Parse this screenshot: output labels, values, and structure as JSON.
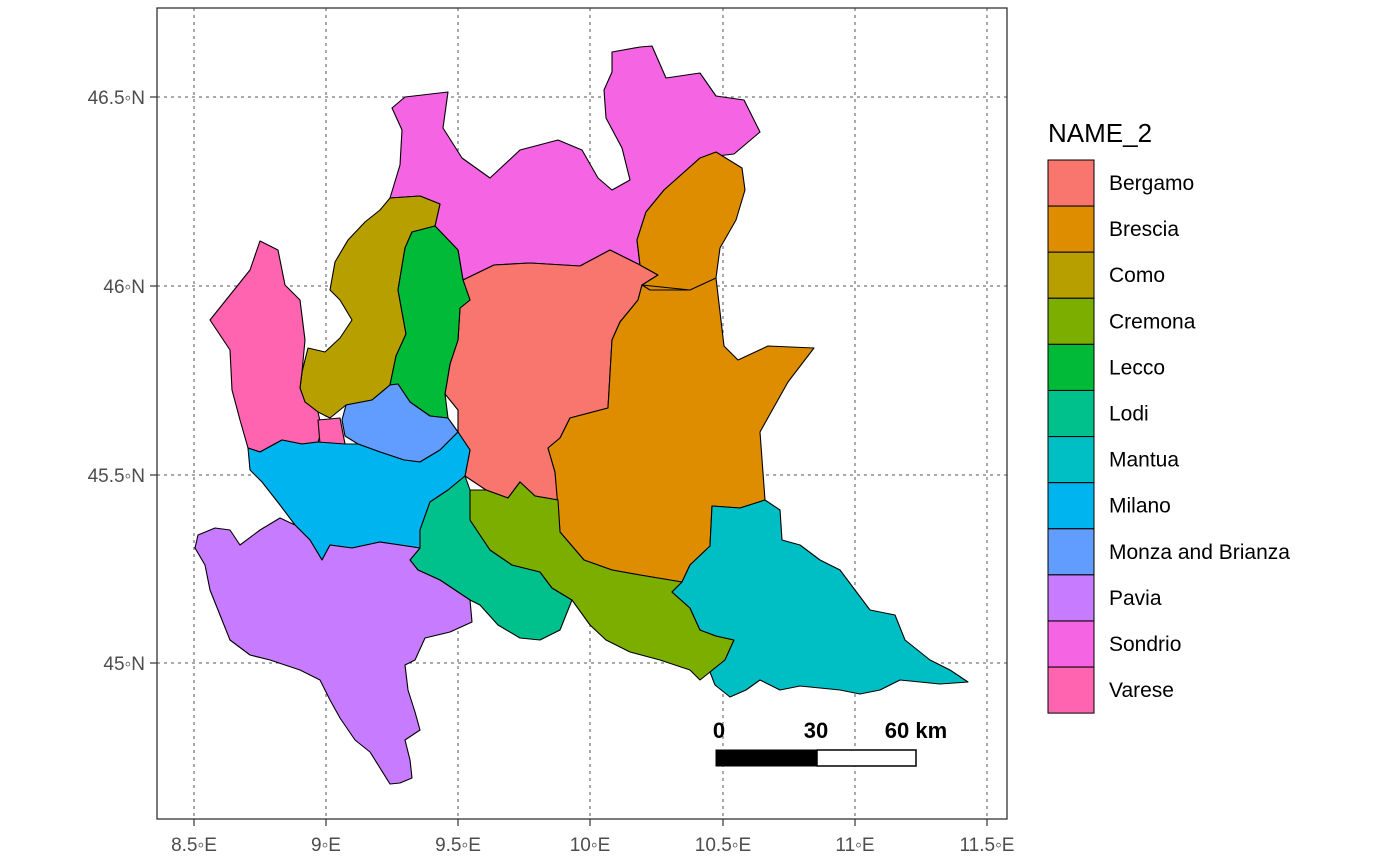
{
  "map": {
    "x_ticks": [
      "8.5◦E",
      "9◦E",
      "9.5◦E",
      "10◦E",
      "10.5◦E",
      "11◦E",
      "11.5◦E"
    ],
    "y_ticks": [
      "46.5◦N",
      "46◦N",
      "45.5◦N",
      "45◦N"
    ],
    "scale_bar": {
      "labels": [
        "0",
        "30",
        "60 km"
      ]
    }
  },
  "legend": {
    "title": "NAME_2",
    "items": [
      {
        "label": "Bergamo",
        "color": "#F8766D"
      },
      {
        "label": "Brescia",
        "color": "#DE8C00"
      },
      {
        "label": "Como",
        "color": "#B79F00"
      },
      {
        "label": "Cremona",
        "color": "#7CAE00"
      },
      {
        "label": "Lecco",
        "color": "#00BA38"
      },
      {
        "label": "Lodi",
        "color": "#00C08B"
      },
      {
        "label": "Mantua",
        "color": "#00BFC4"
      },
      {
        "label": "Milano",
        "color": "#00B4F0"
      },
      {
        "label": "Monza and Brianza",
        "color": "#619CFF"
      },
      {
        "label": "Pavia",
        "color": "#C77CFF"
      },
      {
        "label": "Sondrio",
        "color": "#F564E3"
      },
      {
        "label": "Varese",
        "color": "#FF64B0"
      }
    ]
  }
}
